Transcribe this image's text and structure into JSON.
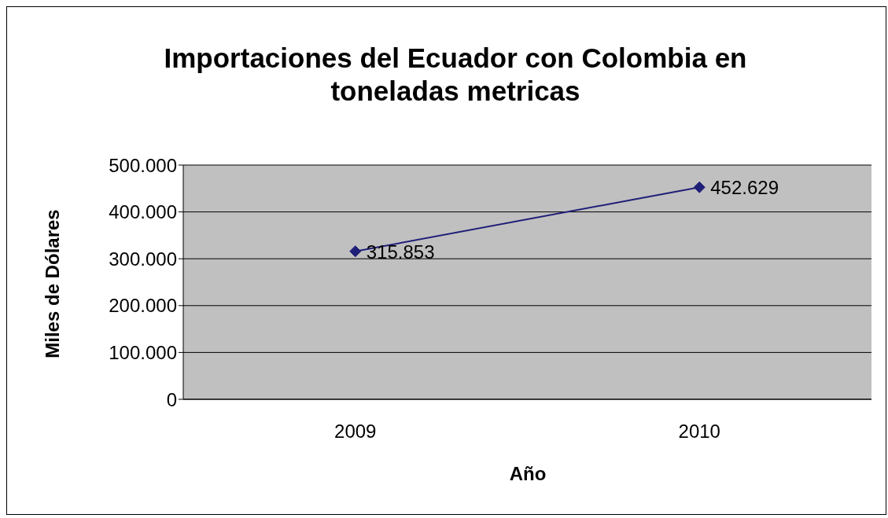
{
  "chart_data": {
    "type": "line",
    "title": "Importaciones del Ecuador con Colombia en toneladas metricas",
    "xlabel": "Año",
    "ylabel": "Miles de Dólares",
    "categories": [
      "2009",
      "2010"
    ],
    "series": [
      {
        "color": "#1f1f78",
        "values": [
          315853,
          452629
        ],
        "value_labels": [
          "315.853",
          "452.629"
        ]
      }
    ],
    "ylim": [
      0,
      500000
    ],
    "yticks": [
      {
        "value": 0,
        "label": "0"
      },
      {
        "value": 100000,
        "label": "100.000"
      },
      {
        "value": 200000,
        "label": "200.000"
      },
      {
        "value": 300000,
        "label": "300.000"
      },
      {
        "value": 400000,
        "label": "400.000"
      },
      {
        "value": 500000,
        "label": "500.000"
      }
    ],
    "grid": "y",
    "marker": "diamond",
    "line_style": "solid"
  }
}
